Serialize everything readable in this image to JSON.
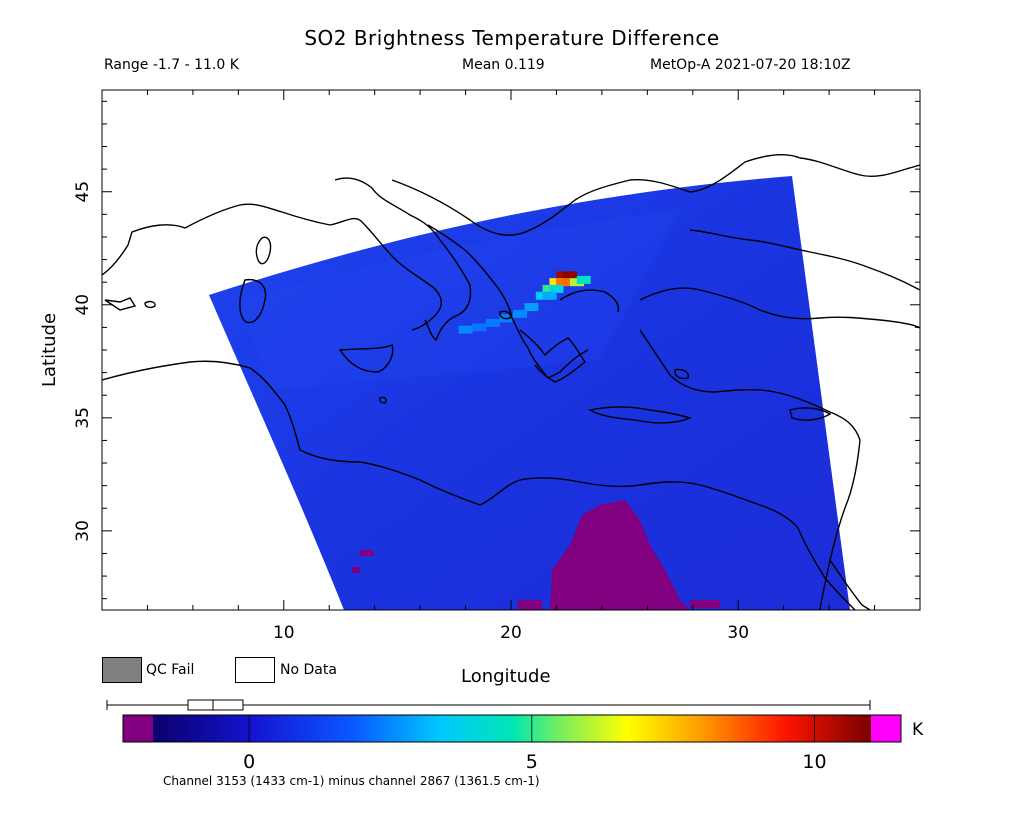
{
  "title": "SO2 Brightness Temperature Difference",
  "subtitle": {
    "range": "Range -1.7 - 11.0 K",
    "mean": "Mean 0.119",
    "satellite_time": "MetOp-A 2021-07-20 18:10Z"
  },
  "axes": {
    "xlabel": "Longitude",
    "ylabel": "Latitude",
    "xlim": [
      2,
      38
    ],
    "ylim": [
      26.5,
      49.5
    ],
    "xticks": [
      10,
      20,
      30
    ],
    "yticks": [
      30,
      35,
      40,
      45
    ]
  },
  "legend": {
    "qc_fail": "QC Fail",
    "no_data": "No Data"
  },
  "colorbar": {
    "unit": "K",
    "ticks": [
      "0",
      "5",
      "10"
    ],
    "tick_values": [
      0,
      5,
      10
    ],
    "range": [
      -1.7,
      11.0
    ],
    "under_color": "#800080",
    "over_color": "#ff00ff",
    "caption": "Channel 3153 (1433 cm-1) minus channel 2867 (1361.5 cm-1)"
  },
  "colors": {
    "background_field": "#1030e0",
    "qc_fail": "#808080",
    "no_data": "#ffffff"
  },
  "plume": [
    {
      "lon": 22.3,
      "lat": 41.3,
      "value": 10.5
    },
    {
      "lon": 22.6,
      "lat": 41.3,
      "value": 10.8
    },
    {
      "lon": 22.0,
      "lat": 41.0,
      "value": 7.0
    },
    {
      "lon": 22.3,
      "lat": 41.0,
      "value": 8.5
    },
    {
      "lon": 22.9,
      "lat": 41.0,
      "value": 6.0
    },
    {
      "lon": 23.2,
      "lat": 41.1,
      "value": 4.5
    },
    {
      "lon": 21.7,
      "lat": 40.7,
      "value": 5.0
    },
    {
      "lon": 22.0,
      "lat": 40.7,
      "value": 4.0
    },
    {
      "lon": 21.4,
      "lat": 40.4,
      "value": 3.5
    },
    {
      "lon": 21.7,
      "lat": 40.4,
      "value": 3.0
    },
    {
      "lon": 20.9,
      "lat": 39.9,
      "value": 2.8
    },
    {
      "lon": 20.4,
      "lat": 39.6,
      "value": 2.5
    },
    {
      "lon": 19.8,
      "lat": 39.4,
      "value": 2.4
    },
    {
      "lon": 19.2,
      "lat": 39.2,
      "value": 2.3
    },
    {
      "lon": 18.6,
      "lat": 39.0,
      "value": 2.2
    },
    {
      "lon": 18.0,
      "lat": 38.9,
      "value": 2.5
    }
  ]
}
